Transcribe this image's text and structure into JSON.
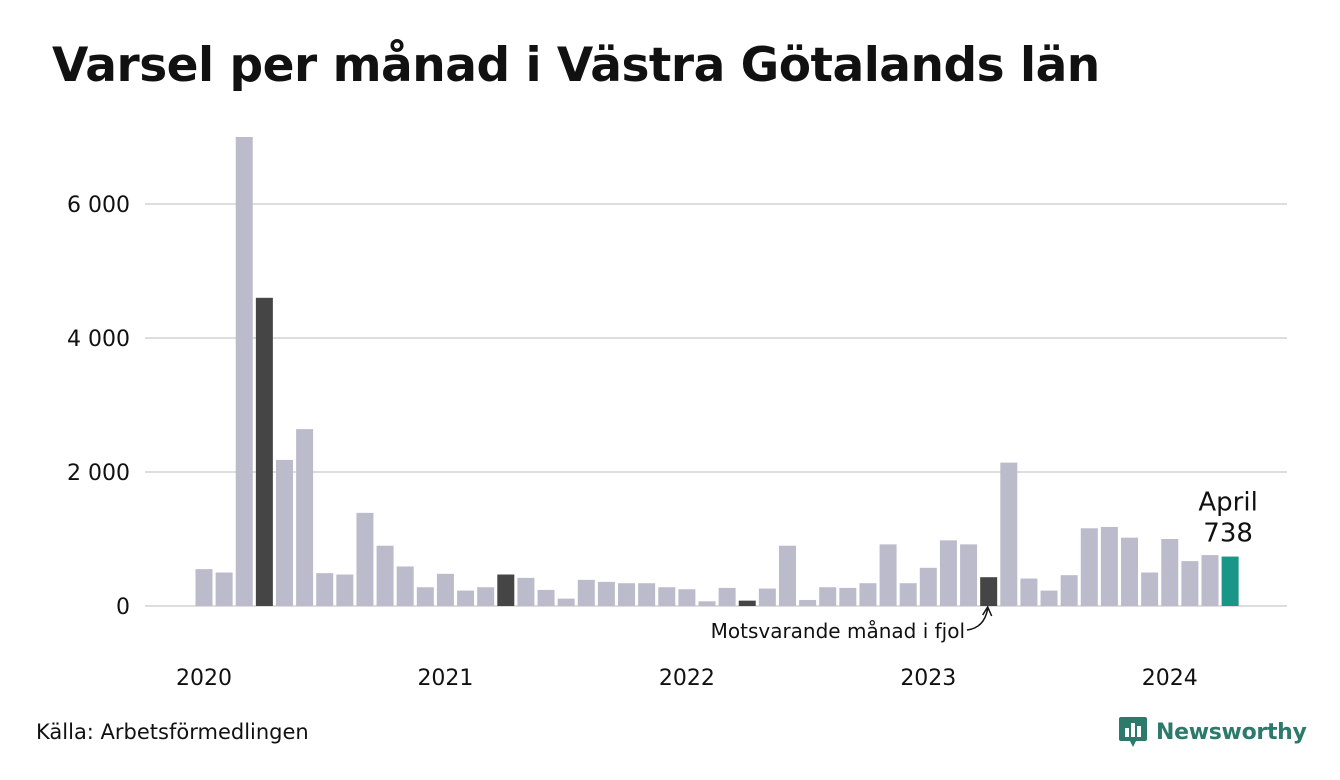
{
  "title": "Varsel per månad i Västra Götalands län",
  "source": "Källa: Arbetsförmedlingen",
  "brand": {
    "name": "Newsworthy",
    "color": "#2b7a6c"
  },
  "colors": {
    "bar": "#bcbbcb",
    "highlight": "#454545",
    "current": "#1a9688",
    "grid": "#dddddd"
  },
  "chart_data": {
    "type": "bar",
    "title": "Varsel per månad i Västra Götalands län",
    "xlabel": "",
    "ylabel": "",
    "ylim": [
      0,
      7000
    ],
    "yticks": [
      {
        "value": 0,
        "label": "0"
      },
      {
        "value": 2000,
        "label": "2 000"
      },
      {
        "value": 4000,
        "label": "4 000"
      },
      {
        "value": 6000,
        "label": "6 000"
      }
    ],
    "xticks": [
      {
        "index": 0,
        "label": "2020"
      },
      {
        "index": 12,
        "label": "2021"
      },
      {
        "index": 24,
        "label": "2022"
      },
      {
        "index": 36,
        "label": "2023"
      },
      {
        "index": 48,
        "label": "2024"
      }
    ],
    "grid": true,
    "values": [
      550,
      500,
      7000,
      4600,
      2180,
      2640,
      490,
      470,
      1390,
      900,
      590,
      280,
      480,
      230,
      280,
      470,
      420,
      240,
      110,
      390,
      360,
      340,
      340,
      280,
      250,
      70,
      270,
      80,
      260,
      900,
      90,
      280,
      270,
      340,
      920,
      340,
      570,
      980,
      920,
      430,
      2140,
      410,
      230,
      460,
      1160,
      1180,
      1020,
      500,
      1000,
      670,
      760,
      738
    ],
    "highlighted_indices": [
      3,
      15,
      27,
      39
    ],
    "current_index": 51,
    "annotations": {
      "current_month": "April",
      "current_value": "738",
      "previous_year": "Motsvarande månad i fjol"
    }
  }
}
